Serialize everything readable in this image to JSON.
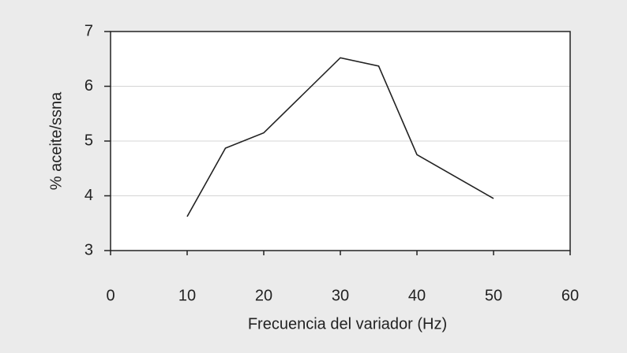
{
  "chart_data": {
    "type": "line",
    "x_label": "Frecuencia del variador (Hz)",
    "y_label": "% aceite/ssna",
    "x": [
      10,
      15,
      20,
      30,
      35,
      40,
      50
    ],
    "series": [
      {
        "color": "#222222",
        "values": [
          3.62,
          4.87,
          5.15,
          6.52,
          6.37,
          4.75,
          3.95
        ]
      }
    ],
    "xlim": [
      0,
      60
    ],
    "xticks": [
      0,
      10,
      20,
      30,
      40,
      50,
      60
    ],
    "ylim": [
      3,
      7
    ],
    "yticks": [
      3,
      4,
      5,
      6,
      7
    ],
    "grid": true
  }
}
